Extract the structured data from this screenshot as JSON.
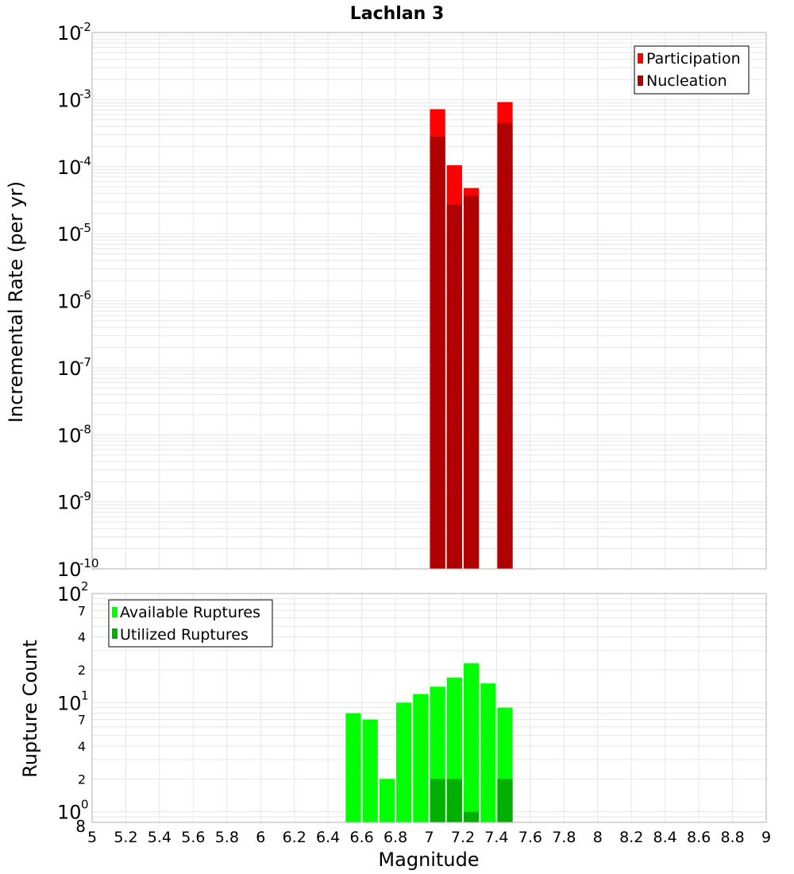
{
  "title": "Lachlan 3",
  "xlabel": "Magnitude",
  "colors": {
    "participation": "#ff0000",
    "nucleation": "#b00000",
    "available": "#00ff00",
    "utilized": "#00b000",
    "grid": "#e6e6e6",
    "frame": "#b0b0b0"
  },
  "chart_data": [
    {
      "type": "bar",
      "scale": "log",
      "ylabel": "Incremental Rate (per yr)",
      "xlim": [
        5,
        9
      ],
      "ylim": [
        1e-10,
        0.01
      ],
      "grid": true,
      "legend_position": "top-right",
      "y_ticks": [
        {
          "base": "10",
          "exp": "-2"
        },
        {
          "base": "10",
          "exp": "-3"
        },
        {
          "base": "10",
          "exp": "-4"
        },
        {
          "base": "10",
          "exp": "-5"
        },
        {
          "base": "10",
          "exp": "-6"
        },
        {
          "base": "10",
          "exp": "-7"
        },
        {
          "base": "10",
          "exp": "-8"
        },
        {
          "base": "10",
          "exp": "-9"
        },
        {
          "base": "10",
          "exp": "-10"
        }
      ],
      "x": [
        7.05,
        7.15,
        7.25,
        7.45
      ],
      "series": [
        {
          "name": "Participation",
          "values": [
            0.00072,
            0.000105,
            4.8e-05,
            0.00092
          ]
        },
        {
          "name": "Nucleation",
          "values": [
            0.00028,
            2.7e-05,
            3.7e-05,
            0.00045
          ]
        }
      ]
    },
    {
      "type": "bar",
      "scale": "log",
      "ylabel": "Rupture Count",
      "xlim": [
        5,
        9
      ],
      "ylim": [
        0.8,
        100
      ],
      "grid": true,
      "legend_position": "top-left",
      "y_ticks": [
        {
          "base": "10",
          "exp": "2"
        },
        {
          "label": "7"
        },
        {
          "label": "4"
        },
        {
          "label": "2"
        },
        {
          "base": "10",
          "exp": "1"
        },
        {
          "label": "7"
        },
        {
          "label": "4"
        },
        {
          "label": "2"
        },
        {
          "base": "10",
          "exp": "0"
        },
        {
          "label": "8"
        }
      ],
      "x_ticks": [
        "5",
        "5.2",
        "5.4",
        "5.6",
        "5.8",
        "6",
        "6.2",
        "6.4",
        "6.6",
        "6.8",
        "7",
        "7.2",
        "7.4",
        "7.6",
        "7.8",
        "8",
        "8.2",
        "8.4",
        "8.6",
        "8.8",
        "9"
      ],
      "x": [
        6.55,
        6.65,
        6.75,
        6.85,
        6.95,
        7.05,
        7.15,
        7.25,
        7.35,
        7.45
      ],
      "series": [
        {
          "name": "Available Ruptures",
          "values": [
            8,
            7,
            2,
            10,
            12,
            14,
            17,
            23,
            15,
            9
          ]
        },
        {
          "name": "Utilized Ruptures",
          "values": [
            0,
            0,
            0,
            0,
            0,
            2,
            2,
            1,
            0,
            2
          ]
        }
      ]
    }
  ]
}
